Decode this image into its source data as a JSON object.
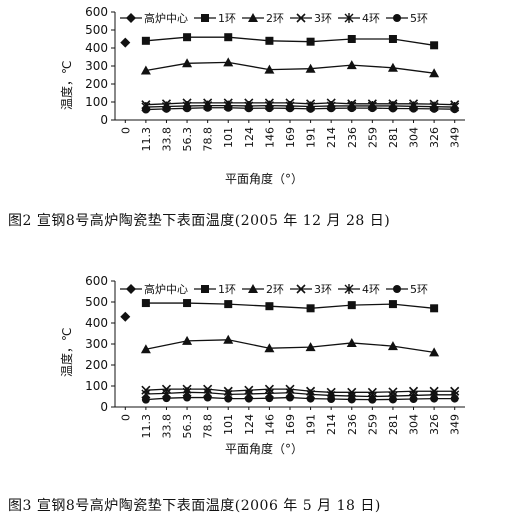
{
  "colors": {
    "ink": "#111111",
    "background": "#ffffff"
  },
  "chart_data": [
    {
      "type": "line",
      "figure_caption": "图2  宣钢8号高炉陶瓷垫下表面温度(2005 年 12 月 28 日)",
      "xlabel": "平面角度（°）",
      "ylabel": "温度，℃",
      "ylim": [
        0,
        600
      ],
      "yticks": [
        "0",
        "100",
        "200",
        "300",
        "400",
        "500",
        "600"
      ],
      "categories": [
        "0",
        "11.3",
        "33.8",
        "56.3",
        "78.8",
        "101",
        "124",
        "146",
        "169",
        "191",
        "214",
        "236",
        "259",
        "281",
        "304",
        "326",
        "349"
      ],
      "legend_position": "top",
      "series": [
        {
          "name": "高炉中心",
          "marker": "diamond",
          "values": [
            430,
            null,
            null,
            null,
            null,
            null,
            null,
            null,
            null,
            null,
            null,
            null,
            null,
            null,
            null,
            null,
            null
          ]
        },
        {
          "name": "1环",
          "marker": "square",
          "values": [
            null,
            440,
            null,
            460,
            null,
            460,
            null,
            440,
            null,
            435,
            null,
            450,
            null,
            450,
            null,
            415,
            null
          ]
        },
        {
          "name": "2环",
          "marker": "triangle",
          "values": [
            null,
            275,
            null,
            315,
            null,
            320,
            null,
            280,
            null,
            285,
            null,
            305,
            null,
            290,
            null,
            260,
            null
          ]
        },
        {
          "name": "3环",
          "marker": "x",
          "values": [
            null,
            85,
            90,
            95,
            95,
            95,
            95,
            95,
            95,
            90,
            95,
            90,
            90,
            90,
            90,
            88,
            85
          ]
        },
        {
          "name": "4环",
          "marker": "star",
          "values": [
            null,
            72,
            75,
            78,
            80,
            80,
            78,
            80,
            78,
            75,
            78,
            78,
            78,
            78,
            76,
            74,
            72
          ]
        },
        {
          "name": "5环",
          "marker": "circle",
          "values": [
            null,
            58,
            62,
            65,
            68,
            68,
            65,
            66,
            65,
            62,
            65,
            66,
            66,
            64,
            63,
            62,
            60
          ]
        }
      ]
    },
    {
      "type": "line",
      "figure_caption": "图3  宣钢8号高炉陶瓷垫下表面温度(2006 年 5 月 18 日)",
      "xlabel": "平面角度（°）",
      "ylabel": "温度，℃",
      "ylim": [
        0,
        600
      ],
      "yticks": [
        "0",
        "100",
        "200",
        "300",
        "400",
        "500",
        "600"
      ],
      "categories": [
        "0",
        "11.3",
        "33.8",
        "56.3",
        "78.8",
        "101",
        "124",
        "146",
        "169",
        "191",
        "214",
        "236",
        "259",
        "281",
        "304",
        "326",
        "349"
      ],
      "legend_position": "top",
      "series": [
        {
          "name": "高炉中心",
          "marker": "diamond",
          "values": [
            430,
            null,
            null,
            null,
            null,
            null,
            null,
            null,
            null,
            null,
            null,
            null,
            null,
            null,
            null,
            null,
            null
          ]
        },
        {
          "name": "1环",
          "marker": "square",
          "values": [
            null,
            495,
            null,
            495,
            null,
            490,
            null,
            480,
            null,
            470,
            null,
            485,
            null,
            490,
            null,
            470,
            null
          ]
        },
        {
          "name": "2环",
          "marker": "triangle",
          "values": [
            null,
            275,
            null,
            315,
            null,
            320,
            null,
            280,
            null,
            285,
            null,
            305,
            null,
            290,
            null,
            260,
            null
          ]
        },
        {
          "name": "3环",
          "marker": "x",
          "values": [
            null,
            80,
            85,
            85,
            85,
            75,
            80,
            85,
            85,
            75,
            70,
            70,
            70,
            72,
            75,
            75,
            75
          ]
        },
        {
          "name": "4环",
          "marker": "star",
          "values": [
            null,
            62,
            65,
            70,
            68,
            60,
            62,
            65,
            68,
            60,
            55,
            52,
            50,
            52,
            55,
            58,
            58
          ]
        },
        {
          "name": "5环",
          "marker": "circle",
          "values": [
            null,
            35,
            42,
            45,
            45,
            40,
            40,
            42,
            45,
            40,
            38,
            36,
            35,
            36,
            38,
            40,
            40
          ]
        }
      ]
    }
  ]
}
